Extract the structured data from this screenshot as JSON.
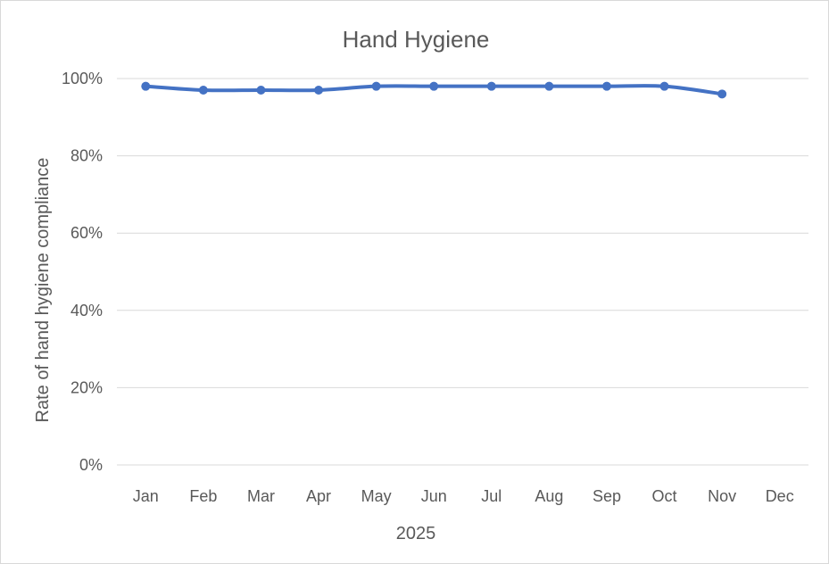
{
  "chart_data": {
    "type": "line",
    "title": "Hand Hygiene",
    "xlabel": "2025",
    "ylabel": "Rate of hand hygiene compliance",
    "categories": [
      "Jan",
      "Feb",
      "Mar",
      "Apr",
      "May",
      "Jun",
      "Jul",
      "Aug",
      "Sep",
      "Oct",
      "Nov",
      "Dec"
    ],
    "series": [
      {
        "values": [
          98,
          97,
          97,
          97,
          98,
          98,
          98,
          98,
          98,
          98,
          96,
          null
        ]
      }
    ],
    "ylim": [
      0,
      100
    ],
    "yticks": [
      "0%",
      "20%",
      "40%",
      "60%",
      "80%",
      "100%"
    ],
    "grid": true,
    "legend": "none",
    "colors": {
      "series": "#4472c4",
      "grid": "#d9d9d9",
      "text": "#595959"
    }
  }
}
